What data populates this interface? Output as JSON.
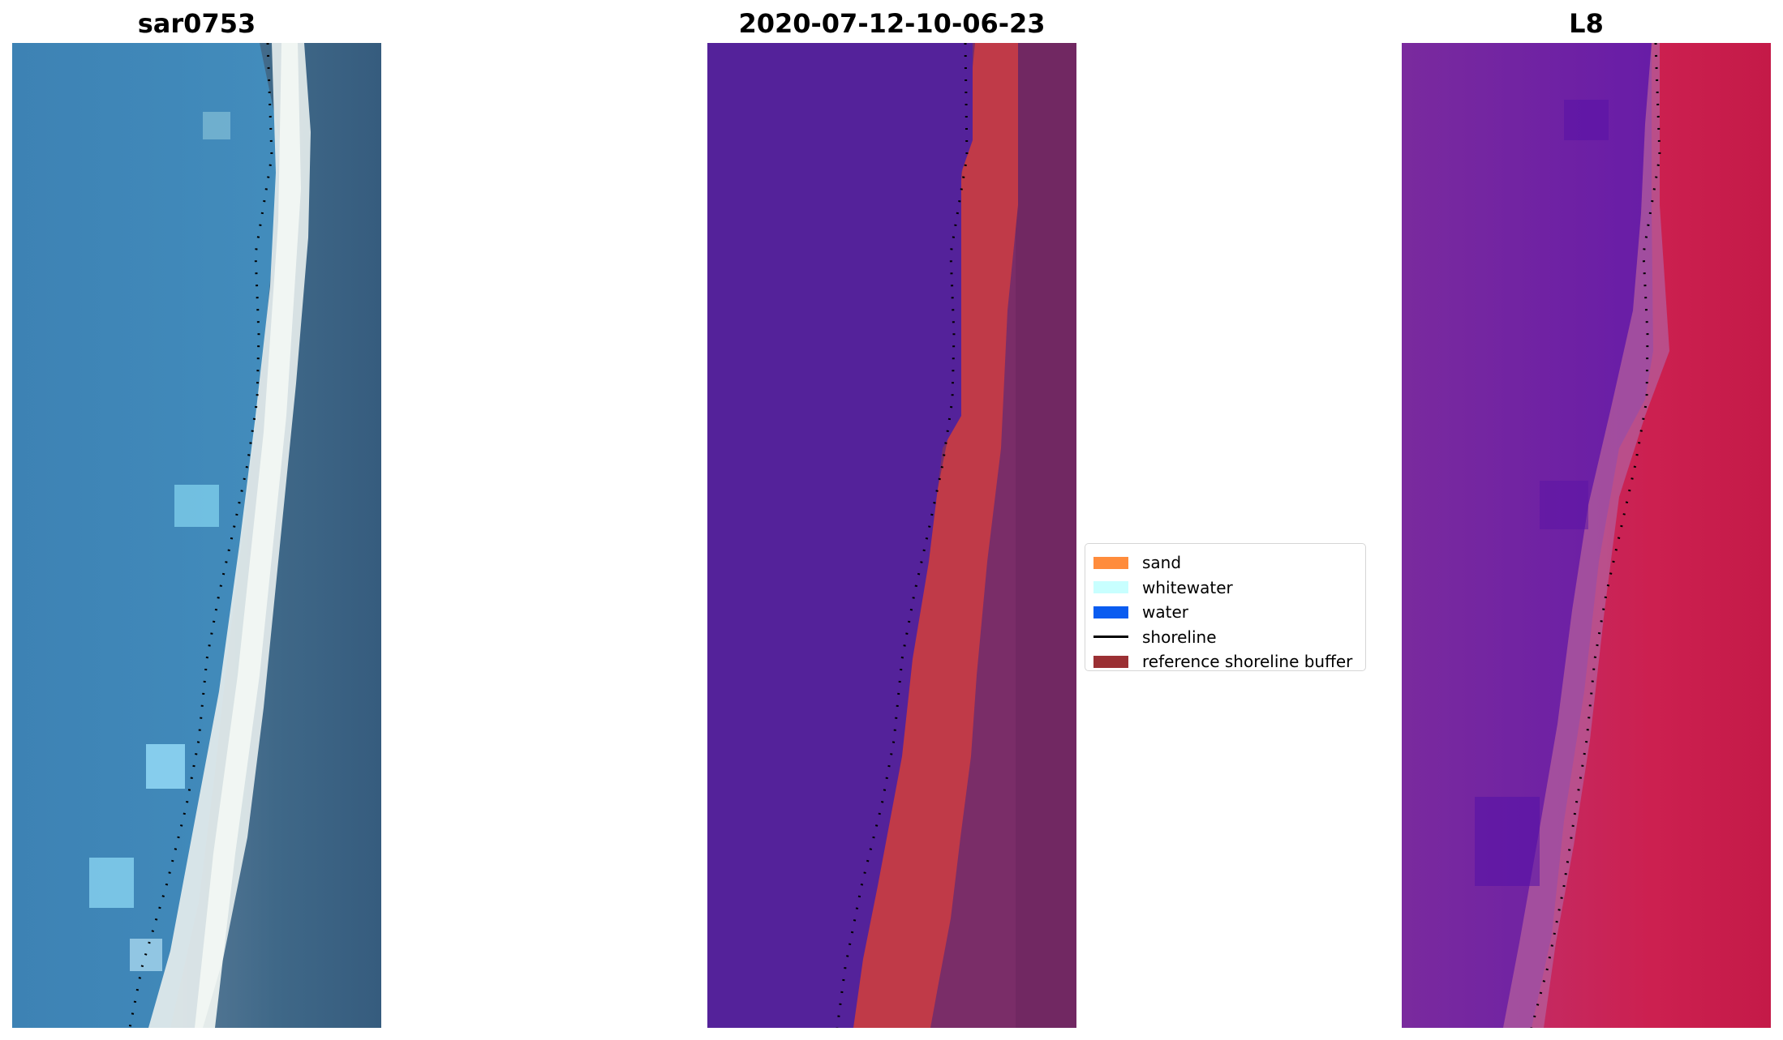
{
  "panels": [
    {
      "title": "sar0753"
    },
    {
      "title": "2020-07-12-10-06-23"
    },
    {
      "title": "L8"
    }
  ],
  "legend": {
    "items": [
      {
        "label": "sand",
        "color": "#ff8c3c"
      },
      {
        "label": "whitewater",
        "color": "#c8ffff"
      },
      {
        "label": "water",
        "color": "#0a5cf0"
      },
      {
        "label": "shoreline",
        "color": "#000000"
      },
      {
        "label": "reference shoreline buffer",
        "color": "#9b3034"
      }
    ]
  },
  "colors": {
    "water_rgb": "#3f86b8",
    "beach_rgb": "#e6ecec",
    "land_rgb": "#3c6585",
    "class_water": "#54229a",
    "class_sand_overlay": "#c03a48",
    "class_land": "#7a2d68",
    "false_water": "#74269f",
    "false_land": "#c82050"
  }
}
